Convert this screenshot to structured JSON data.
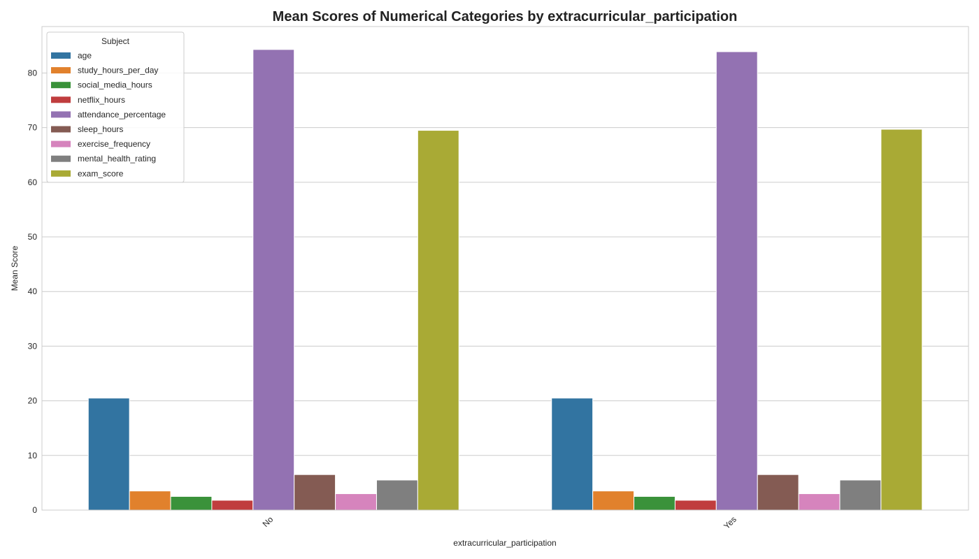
{
  "chart_data": {
    "type": "bar",
    "title": "Mean Scores of Numerical Categories by extracurricular_participation",
    "xlabel": "extracurricular_participation",
    "ylabel": "Mean Score",
    "categories": [
      "No",
      "Yes"
    ],
    "ylim": [
      0,
      88.5
    ],
    "yticks": [
      0,
      10,
      20,
      30,
      40,
      50,
      60,
      70,
      80
    ],
    "grid": true,
    "legend": {
      "title": "Subject",
      "placement": "top-left"
    },
    "series": [
      {
        "name": "age",
        "color": "#3274a1",
        "values": [
          20.5,
          20.5
        ]
      },
      {
        "name": "study_hours_per_day",
        "color": "#e1812c",
        "values": [
          3.5,
          3.5
        ]
      },
      {
        "name": "social_media_hours",
        "color": "#3a923a",
        "values": [
          2.5,
          2.5
        ]
      },
      {
        "name": "netflix_hours",
        "color": "#c03d3e",
        "values": [
          1.8,
          1.8
        ]
      },
      {
        "name": "attendance_percentage",
        "color": "#9372b2",
        "values": [
          84.3,
          83.9
        ]
      },
      {
        "name": "sleep_hours",
        "color": "#845b53",
        "values": [
          6.5,
          6.5
        ]
      },
      {
        "name": "exercise_frequency",
        "color": "#d684bd",
        "values": [
          3.0,
          3.0
        ]
      },
      {
        "name": "mental_health_rating",
        "color": "#7f7f7f",
        "values": [
          5.5,
          5.5
        ]
      },
      {
        "name": "exam_score",
        "color": "#a9aa35",
        "values": [
          69.5,
          69.7
        ]
      }
    ]
  }
}
